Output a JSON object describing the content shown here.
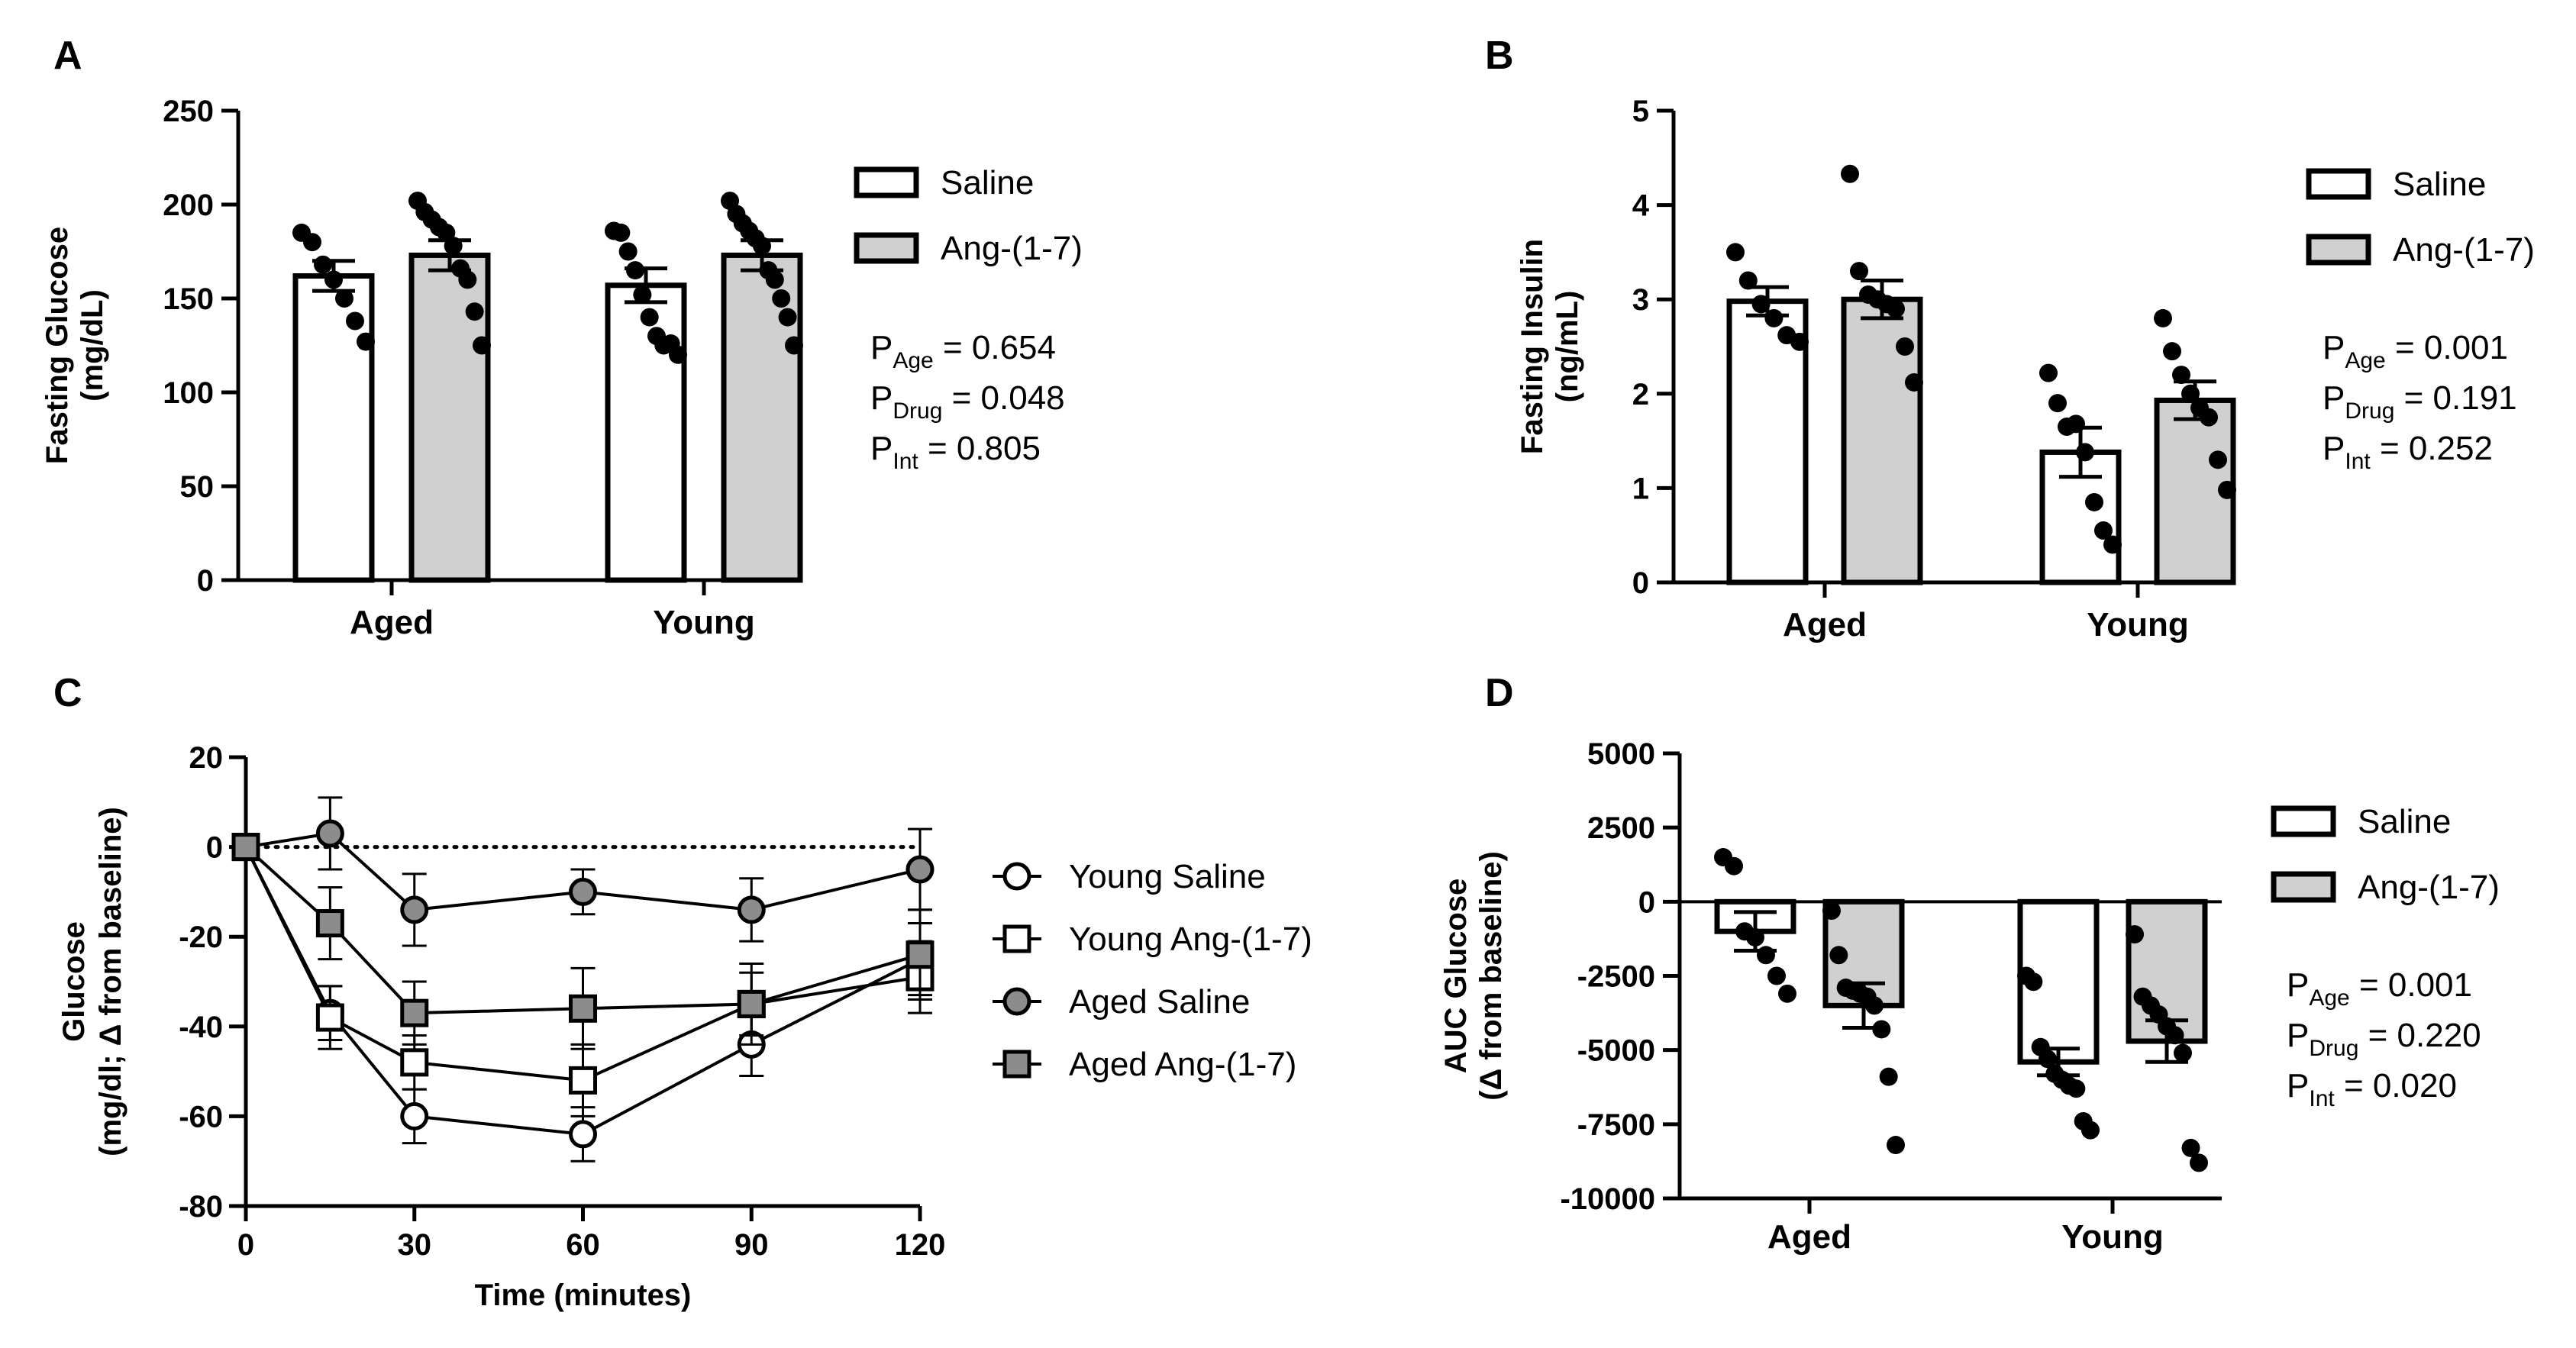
{
  "panels": {
    "A": {
      "letter": "A",
      "chart_data": {
        "type": "bar",
        "categories": [
          "Aged",
          "Young"
        ],
        "series": [
          {
            "name": "Saline",
            "values": [
              162,
              157
            ],
            "sem": [
              8,
              9
            ],
            "points": [
              [
                185,
                180,
                168,
                160,
                150,
                138,
                127
              ],
              [
                186,
                185,
                175,
                165,
                152,
                140,
                130,
                125,
                126,
                120
              ]
            ]
          },
          {
            "name": "Ang-(1-7)",
            "values": [
              173,
              173
            ],
            "sem": [
              8,
              8
            ],
            "points": [
              [
                202,
                196,
                192,
                188,
                185,
                178,
                166,
                160,
                143,
                125
              ],
              [
                202,
                195,
                190,
                186,
                182,
                178,
                165,
                160,
                150,
                140,
                125
              ]
            ]
          }
        ],
        "ylabel": [
          "Fasting Glucose",
          "(mg/dL)"
        ],
        "ylim": [
          0,
          250
        ],
        "yticks": [
          0,
          50,
          100,
          150,
          200,
          250
        ],
        "legend": [
          "Saline",
          "Ang-(1-7)"
        ],
        "stats": [
          {
            "p": "P",
            "sub": "Age",
            "text": " = 0.654"
          },
          {
            "p": "P",
            "sub": "Drug",
            "text": " = 0.048"
          },
          {
            "p": "P",
            "sub": "Int",
            "text": " = 0.805"
          }
        ]
      }
    },
    "B": {
      "letter": "B",
      "chart_data": {
        "type": "bar",
        "categories": [
          "Aged",
          "Young"
        ],
        "series": [
          {
            "name": "Saline",
            "values": [
              2.98,
              1.38
            ],
            "sem": [
              0.15,
              0.26
            ],
            "points": [
              [
                3.5,
                3.2,
                2.95,
                2.8,
                2.62,
                2.55
              ],
              [
                2.22,
                1.9,
                1.65,
                1.68,
                1.38,
                0.85,
                0.55,
                0.4
              ]
            ]
          },
          {
            "name": "Ang-(1-7)",
            "values": [
              3.0,
              1.93
            ],
            "sem": [
              0.2,
              0.2
            ],
            "points": [
              [
                4.33,
                3.3,
                3.05,
                3.0,
                2.95,
                2.9,
                2.5,
                2.12
              ],
              [
                2.8,
                2.45,
                2.2,
                2.0,
                1.85,
                1.75,
                1.3,
                0.98
              ]
            ]
          }
        ],
        "ylabel": [
          "Fasting Insulin",
          "(ng/mL)"
        ],
        "ylim": [
          0,
          5
        ],
        "yticks": [
          0,
          1,
          2,
          3,
          4,
          5
        ],
        "legend": [
          "Saline",
          "Ang-(1-7)"
        ],
        "stats": [
          {
            "p": "P",
            "sub": "Age",
            "text": " = 0.001"
          },
          {
            "p": "P",
            "sub": "Drug",
            "text": " = 0.191"
          },
          {
            "p": "P",
            "sub": "Int",
            "text": " = 0.252"
          }
        ]
      }
    },
    "C": {
      "letter": "C",
      "chart_data": {
        "type": "line",
        "x": [
          0,
          15,
          30,
          60,
          90,
          120
        ],
        "series": [
          {
            "name": "Young Saline",
            "marker": "circle",
            "fill": "white",
            "values": [
              0,
              -37,
              -60,
              -64,
              -44,
              -25
            ],
            "err": [
              0,
              6,
              6,
              6,
              7,
              8
            ]
          },
          {
            "name": "Young Ang-(1-7)",
            "marker": "square",
            "fill": "white",
            "values": [
              0,
              -38,
              -48,
              -52,
              -35,
              -29
            ],
            "err": [
              0,
              7,
              6,
              8,
              7,
              8
            ]
          },
          {
            "name": "Aged Saline",
            "marker": "circle",
            "fill": "gray",
            "values": [
              0,
              3,
              -14,
              -10,
              -14,
              -5
            ],
            "err": [
              0,
              8,
              8,
              5,
              7,
              9
            ]
          },
          {
            "name": "Aged Ang-(1-7)",
            "marker": "square",
            "fill": "gray",
            "values": [
              0,
              -17,
              -37,
              -36,
              -35,
              -24
            ],
            "err": [
              0,
              8,
              7,
              9,
              9,
              10
            ]
          }
        ],
        "xlabel": "Time (minutes)",
        "ylabel": [
          "Glucose",
          "(mg/dl; Δ from baseline)"
        ],
        "xlim": [
          0,
          120
        ],
        "ylim": [
          -80,
          20
        ],
        "xticks": [
          0,
          30,
          60,
          90,
          120
        ],
        "yticks": [
          20,
          0,
          -20,
          -40,
          -60,
          -80
        ],
        "legend": [
          "Young Saline",
          "Young Ang-(1-7)",
          "Aged Saline",
          "Aged Ang-(1-7)"
        ]
      }
    },
    "D": {
      "letter": "D",
      "chart_data": {
        "type": "bar",
        "categories": [
          "Aged",
          "Young"
        ],
        "series": [
          {
            "name": "Saline",
            "values": [
              -1000,
              -5400
            ],
            "sem": [
              650,
              450
            ],
            "points": [
              [
                1500,
                1200,
                -1000,
                -1200,
                -1800,
                -2500,
                -3100
              ],
              [
                -2500,
                -2700,
                -4900,
                -5300,
                -5800,
                -6000,
                -6200,
                -6300,
                -7400,
                -7700
              ]
            ]
          },
          {
            "name": "Ang-(1-7)",
            "values": [
              -3500,
              -4700
            ],
            "sem": [
              750,
              700
            ],
            "points": [
              [
                -300,
                -1800,
                -2900,
                -3000,
                -3100,
                -3200,
                -3500,
                -4300,
                -5900,
                -8200
              ],
              [
                -1100,
                -3200,
                -3500,
                -3800,
                -4200,
                -4500,
                -5100,
                -8300,
                -8800
              ]
            ]
          }
        ],
        "ylabel": [
          "AUC Glucose",
          "(Δ from baseline)"
        ],
        "ylim": [
          -10000,
          5000
        ],
        "yticks": [
          5000,
          2500,
          0,
          -2500,
          -5000,
          -7500,
          -10000
        ],
        "legend": [
          "Saline",
          "Ang-(1-7)"
        ],
        "stats": [
          {
            "p": "P",
            "sub": "Age",
            "text": " = 0.001"
          },
          {
            "p": "P",
            "sub": "Drug",
            "text": " = 0.220"
          },
          {
            "p": "P",
            "sub": "Int",
            "text": " = 0.020"
          }
        ]
      }
    }
  },
  "colors": {
    "saline_fill": "#ffffff",
    "ang_fill": "#d0d0d0",
    "marker_gray": "#8c8c8c",
    "ink": "#000000"
  }
}
